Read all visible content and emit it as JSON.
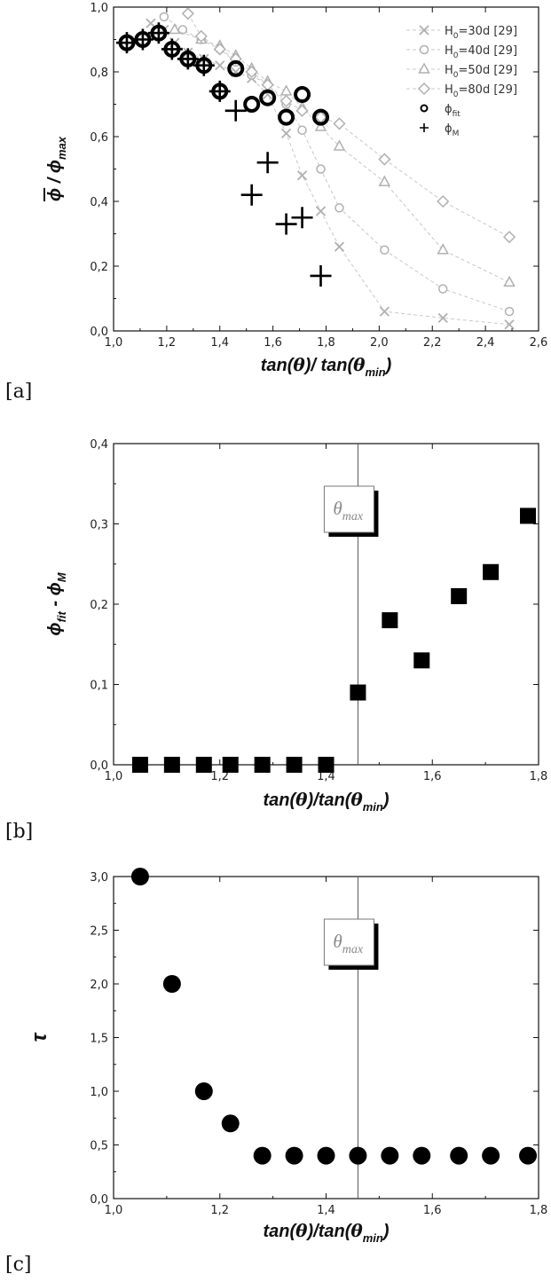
{
  "chart_data": [
    {
      "panel_label": "[a]",
      "type": "scatter",
      "xlabel_parts": [
        "tan(",
        "θ",
        ")/ tan(",
        "θ",
        "min",
        ")"
      ],
      "ylabel_parts": [
        "ϕ",
        " / ",
        "ϕ",
        "max"
      ],
      "xlim": [
        1.0,
        2.6
      ],
      "ylim": [
        0.0,
        1.0
      ],
      "xticks": [
        "1,0",
        "1,2",
        "1,4",
        "1,6",
        "1,8",
        "2,0",
        "2,2",
        "2,4",
        "2,6"
      ],
      "yticks": [
        "0,0",
        "0,2",
        "0,4",
        "0,6",
        "0,8",
        "1,0"
      ],
      "legend_position": "top-right",
      "legend": [
        {
          "text": "H",
          "sub": "0",
          "rest": "=30d [29]"
        },
        {
          "text": "H",
          "sub": "0",
          "rest": "=40d [29]"
        },
        {
          "text": "H",
          "sub": "0",
          "rest": "=50d [29]"
        },
        {
          "text": "H",
          "sub": "0",
          "rest": "=80d [29]"
        },
        {
          "text": "ϕ",
          "sub": "fit",
          "rest": ""
        },
        {
          "text": "ϕ",
          "sub": "M",
          "rest": ""
        }
      ],
      "series": [
        {
          "name": "H0=30d [29]",
          "marker": "x",
          "color": "#b0b0b0",
          "dashed": true,
          "x": [
            1.14,
            1.19,
            1.23,
            1.28,
            1.34,
            1.4,
            1.46,
            1.52,
            1.58,
            1.65,
            1.71,
            1.78,
            1.85,
            2.02,
            2.24,
            2.49
          ],
          "y": [
            0.95,
            0.93,
            0.89,
            0.86,
            0.84,
            0.82,
            0.8,
            0.78,
            0.73,
            0.61,
            0.48,
            0.37,
            0.26,
            0.06,
            0.04,
            0.02
          ]
        },
        {
          "name": "H0=40d [29]",
          "marker": "circle",
          "color": "#b0b0b0",
          "dashed": true,
          "x": [
            1.19,
            1.26,
            1.33,
            1.4,
            1.46,
            1.52,
            1.58,
            1.65,
            1.71,
            1.78,
            1.85,
            2.02,
            2.24,
            2.49
          ],
          "y": [
            0.97,
            0.93,
            0.9,
            0.87,
            0.83,
            0.79,
            0.76,
            0.7,
            0.62,
            0.5,
            0.38,
            0.25,
            0.13,
            0.06
          ]
        },
        {
          "name": "H0=50d [29]",
          "marker": "triangle",
          "color": "#b0b0b0",
          "dashed": true,
          "x": [
            1.23,
            1.33,
            1.4,
            1.46,
            1.52,
            1.58,
            1.65,
            1.71,
            1.78,
            1.85,
            2.02,
            2.24,
            2.49
          ],
          "y": [
            0.93,
            0.9,
            0.88,
            0.85,
            0.81,
            0.77,
            0.74,
            0.69,
            0.63,
            0.57,
            0.46,
            0.25,
            0.15
          ]
        },
        {
          "name": "H0=80d [29]",
          "marker": "diamond",
          "color": "#b0b0b0",
          "dashed": true,
          "x": [
            1.28,
            1.33,
            1.4,
            1.46,
            1.52,
            1.58,
            1.65,
            1.71,
            1.78,
            1.85,
            2.02,
            2.24,
            2.49
          ],
          "y": [
            0.98,
            0.91,
            0.87,
            0.84,
            0.8,
            0.76,
            0.71,
            0.68,
            0.66,
            0.64,
            0.53,
            0.4,
            0.29
          ]
        },
        {
          "name": "ϕfit",
          "marker": "ring",
          "color": "#000000",
          "dashed": false,
          "x": [
            1.05,
            1.11,
            1.17,
            1.22,
            1.28,
            1.34,
            1.4,
            1.46,
            1.52,
            1.58,
            1.65,
            1.71,
            1.78
          ],
          "y": [
            0.89,
            0.9,
            0.92,
            0.87,
            0.84,
            0.82,
            0.74,
            0.81,
            0.7,
            0.72,
            0.66,
            0.73,
            0.66
          ]
        },
        {
          "name": "ϕM",
          "marker": "plus",
          "color": "#000000",
          "dashed": false,
          "x": [
            1.05,
            1.11,
            1.17,
            1.22,
            1.28,
            1.34,
            1.4,
            1.46,
            1.52,
            1.58,
            1.65,
            1.71,
            1.78
          ],
          "y": [
            0.89,
            0.9,
            0.92,
            0.87,
            0.84,
            0.82,
            0.74,
            0.68,
            0.42,
            0.52,
            0.33,
            0.35,
            0.17
          ]
        }
      ]
    },
    {
      "panel_label": "[b]",
      "type": "scatter",
      "xlabel_parts": [
        "tan(",
        "θ",
        ")/tan(",
        "θ",
        "min",
        ")"
      ],
      "ylabel_parts": [
        "ϕ",
        "fit",
        " - ",
        "ϕ",
        "M"
      ],
      "xlim": [
        1.0,
        1.8
      ],
      "ylim": [
        0.0,
        0.4
      ],
      "xticks": [
        "1,0",
        "1,2",
        "1,4",
        "1,6",
        "1,8"
      ],
      "yticks": [
        "0,0",
        "0,1",
        "0,2",
        "0,3",
        "0,4"
      ],
      "vline": 1.46,
      "annotation": {
        "symbol": "θ",
        "sub": "max"
      },
      "series": [
        {
          "marker": "square",
          "color": "#000000",
          "x": [
            1.05,
            1.11,
            1.17,
            1.22,
            1.28,
            1.34,
            1.4,
            1.46,
            1.52,
            1.58,
            1.65,
            1.71,
            1.78
          ],
          "y": [
            0.0,
            0.0,
            0.0,
            0.0,
            0.0,
            0.0,
            0.0,
            0.09,
            0.18,
            0.13,
            0.21,
            0.24,
            0.31
          ]
        }
      ]
    },
    {
      "panel_label": "[c]",
      "type": "scatter",
      "xlabel_parts": [
        "tan(",
        "θ",
        ")/tan(",
        "θ",
        "min",
        ")"
      ],
      "ylabel_parts": [
        "τ"
      ],
      "xlim": [
        1.0,
        1.8
      ],
      "ylim": [
        0.0,
        3.0
      ],
      "xticks": [
        "1,0",
        "1,2",
        "1,4",
        "1,6",
        "1,8"
      ],
      "yticks": [
        "0,0",
        "0,5",
        "1,0",
        "1,5",
        "2,0",
        "2,5",
        "3,0"
      ],
      "vline": 1.46,
      "annotation": {
        "symbol": "θ",
        "sub": "max"
      },
      "series": [
        {
          "marker": "dot",
          "color": "#000000",
          "x": [
            1.05,
            1.11,
            1.17,
            1.22,
            1.28,
            1.34,
            1.4,
            1.46,
            1.52,
            1.58,
            1.65,
            1.71,
            1.78
          ],
          "y": [
            3.0,
            2.0,
            1.0,
            0.7,
            0.4,
            0.4,
            0.4,
            0.4,
            0.4,
            0.4,
            0.4,
            0.4,
            0.4
          ]
        }
      ]
    }
  ]
}
